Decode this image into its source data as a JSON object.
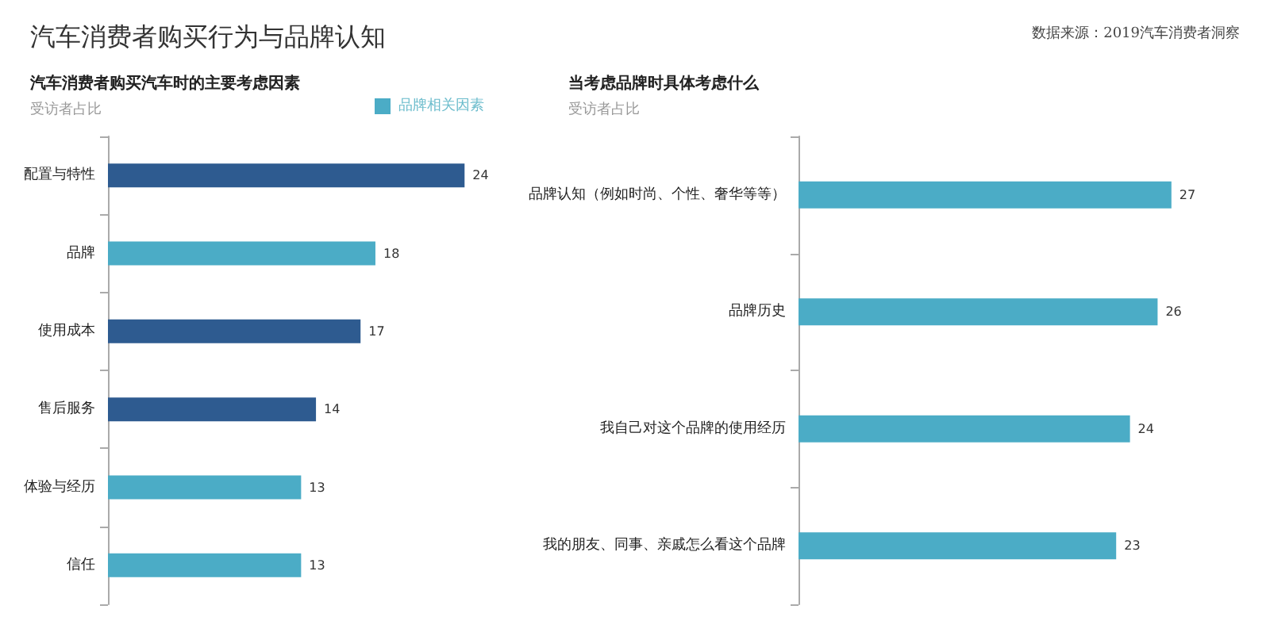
{
  "chart_data": [
    {
      "type": "bar",
      "orientation": "horizontal",
      "title": "汽车消费者购买行为与品牌认知",
      "subtitle": "汽车消费者购买汽车时的主要考虑因素",
      "xlabel": "受访者占比",
      "categories": [
        "配置与特性",
        "品牌",
        "使用成本",
        "售后服务",
        "体验与经历",
        "信任"
      ],
      "series": [
        {
          "color": "#2e5b90",
          "values": [
            24,
            null,
            17,
            14,
            null,
            null
          ]
        },
        {
          "name": "品牌相关因素",
          "color": "#4bacc6",
          "values": [
            null,
            18,
            null,
            null,
            13,
            13
          ]
        }
      ],
      "tick_labels": "y",
      "data_labels": true,
      "legend": "top right"
    },
    {
      "type": "bar",
      "orientation": "horizontal",
      "title": "当考虑品牌时具体考虑什么",
      "xlabel": "受访者占比",
      "annotations": [
        "数据来源：2019汽车消费者洞察"
      ],
      "categories": [
        "品牌认知（例如时尚、个性、奢华等等）",
        "品牌历史",
        "我自己对这个品牌的使用经历",
        "我的朋友、同事、亲戚怎么看这个品牌"
      ],
      "series": [
        {
          "color": "#4bacc6",
          "values": [
            27,
            26,
            24,
            23
          ]
        }
      ],
      "tick_labels": "y",
      "data_labels": true
    }
  ]
}
